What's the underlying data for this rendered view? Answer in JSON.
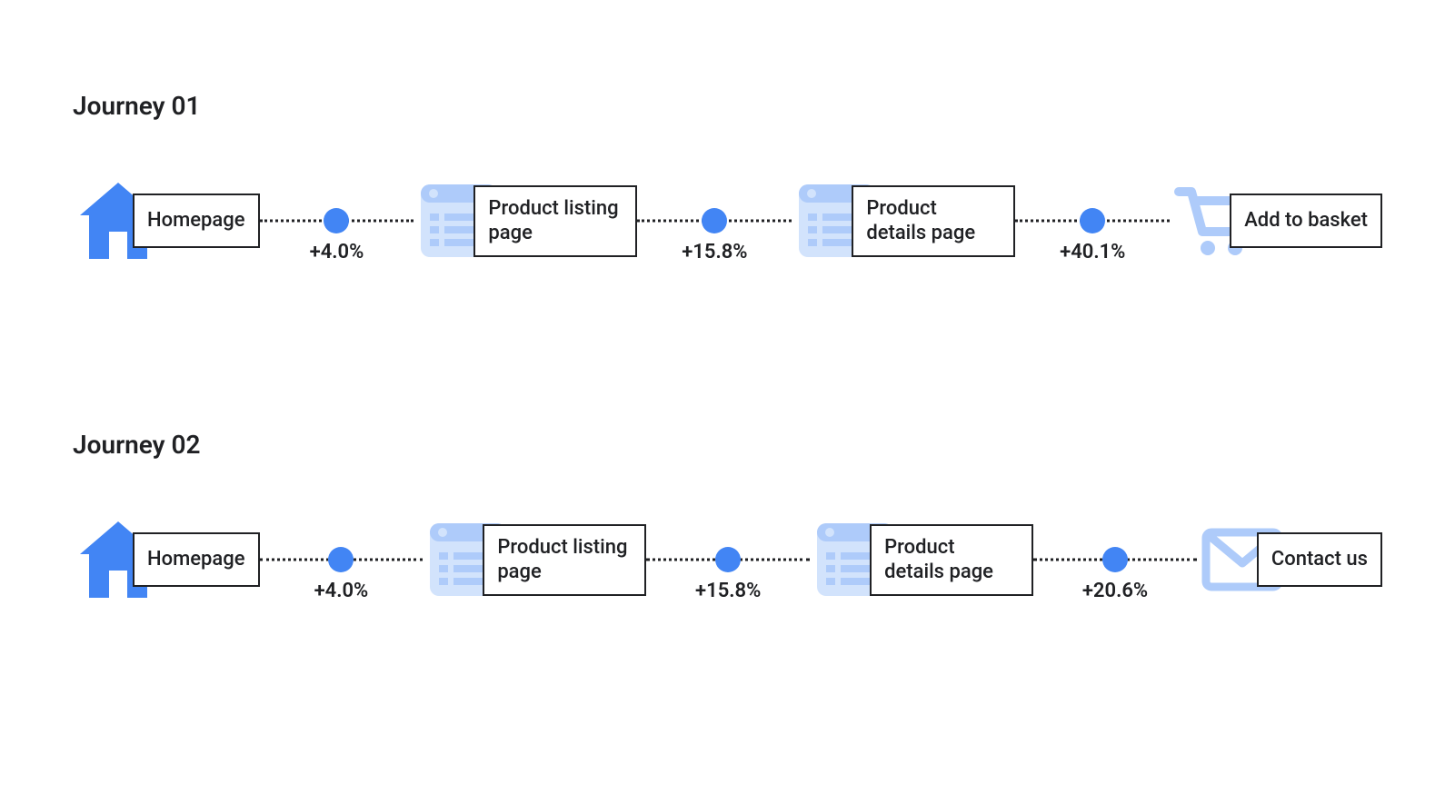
{
  "type": "flowchart",
  "background_color": "#ffffff",
  "text_color": "#202124",
  "accent_blue": "#4285f4",
  "light_blue": "#aecbfa",
  "lighter_blue": "#d2e3fc",
  "border_color": "#202124",
  "title_fontsize": 28,
  "label_fontsize": 22,
  "percent_fontsize": 22,
  "dot_diameter": 28,
  "connector_style": "dotted",
  "journeys": [
    {
      "title": "Journey 01",
      "steps": [
        {
          "icon": "home",
          "label": "Homepage"
        },
        {
          "icon": "list",
          "label": "Product listing page"
        },
        {
          "icon": "list",
          "label": "Product details page"
        },
        {
          "icon": "cart",
          "label": "Add to basket"
        }
      ],
      "transitions": [
        {
          "value": "+4.0%"
        },
        {
          "value": "+15.8%"
        },
        {
          "value": "+40.1%"
        }
      ]
    },
    {
      "title": "Journey 02",
      "steps": [
        {
          "icon": "home",
          "label": "Homepage"
        },
        {
          "icon": "list",
          "label": "Product listing page"
        },
        {
          "icon": "list",
          "label": "Product details page"
        },
        {
          "icon": "mail",
          "label": "Contact us"
        }
      ],
      "transitions": [
        {
          "value": "+4.0%"
        },
        {
          "value": "+15.8%"
        },
        {
          "value": "+20.6%"
        }
      ]
    }
  ]
}
